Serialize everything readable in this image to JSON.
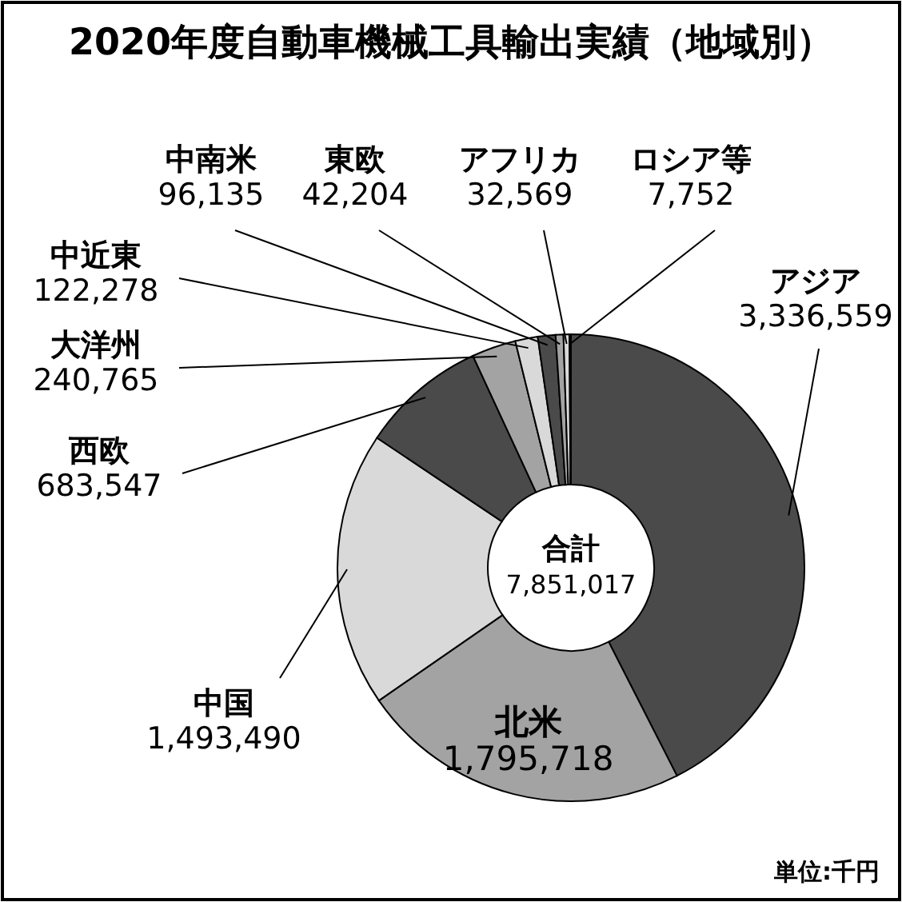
{
  "chart_data": {
    "type": "donut",
    "title": "2020年度自動車機械工具輸出実績（地域別）",
    "categories": [
      "アジア",
      "北米",
      "中国",
      "西欧",
      "大洋州",
      "中近東",
      "中南米",
      "東欧",
      "アフリカ",
      "ロシア等"
    ],
    "values": [
      3336559,
      1795718,
      1493490,
      683547,
      240765,
      122278,
      96135,
      42204,
      32569,
      7752
    ],
    "colors": [
      "#4a4a4a",
      "#a3a3a3",
      "#d9d9d9",
      "#4a4a4a",
      "#a3a3a3",
      "#d9d9d9",
      "#4a4a4a",
      "#a3a3a3",
      "#d9d9d9",
      "#2e2e2e"
    ],
    "value_labels": [
      "3,336,559",
      "1,795,718",
      "1,493,490",
      "683,547",
      "240,765",
      "122,278",
      "96,135",
      "42,204",
      "32,569",
      "7,752"
    ],
    "annotations": [
      "合計",
      "7,851,017",
      "単位:千円"
    ]
  }
}
